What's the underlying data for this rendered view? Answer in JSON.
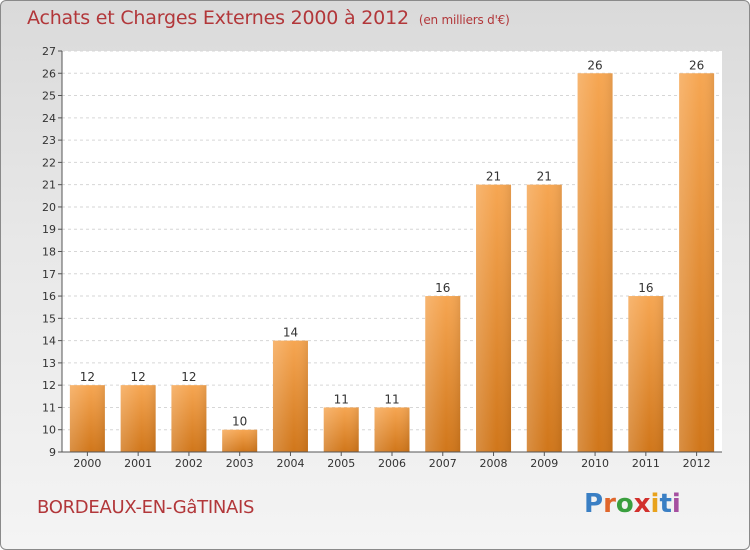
{
  "header": {
    "title": "Achats et Charges Externes 2000 à 2012",
    "subtitle": "(en milliers d'€)"
  },
  "footer": {
    "city": "BORDEAUX-EN-GâTINAIS",
    "logo_letters": [
      "P",
      "r",
      "o",
      "x",
      "i",
      "t",
      "i"
    ],
    "logo_colors": [
      "#3a7fc4",
      "#e0662b",
      "#3a9f3e",
      "#d2302c",
      "#e8a21c",
      "#3a7fc4",
      "#a54fa0"
    ]
  },
  "colors": {
    "bar_top": "#f6a652",
    "bar_bottom": "#d0761a",
    "title": "#b2373a"
  },
  "chart_data": {
    "type": "bar",
    "categories": [
      "2000",
      "2001",
      "2002",
      "2003",
      "2004",
      "2005",
      "2006",
      "2007",
      "2008",
      "2009",
      "2010",
      "2011",
      "2012"
    ],
    "values": [
      12,
      12,
      12,
      10,
      14,
      11,
      11,
      16,
      21,
      21,
      26,
      16,
      26
    ],
    "ylim": [
      9,
      27
    ],
    "yticks": [
      9,
      10,
      11,
      12,
      13,
      14,
      15,
      16,
      17,
      18,
      19,
      20,
      21,
      22,
      23,
      24,
      25,
      26,
      27
    ],
    "grid": true
  }
}
